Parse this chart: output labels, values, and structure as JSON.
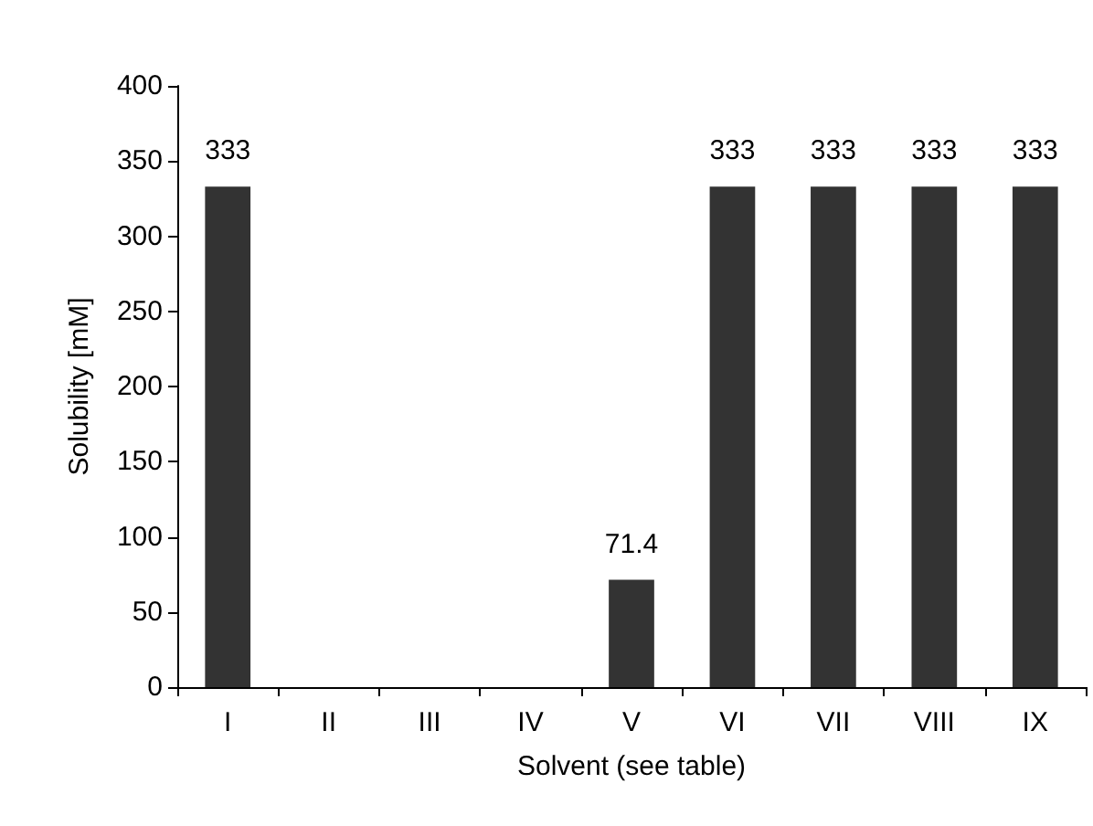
{
  "chart_data": {
    "type": "bar",
    "xlabel": "Solvent (see table)",
    "ylabel": "Solubility [mM]",
    "categories": [
      "I",
      "II",
      "III",
      "IV",
      "V",
      "VI",
      "VII",
      "VIII",
      "IX"
    ],
    "values": [
      333,
      0,
      0,
      0,
      71.4,
      333,
      333,
      333,
      333
    ],
    "value_labels": [
      "333",
      null,
      null,
      null,
      "71.4",
      "333",
      "333",
      "333",
      "333"
    ],
    "color": "#333333",
    "ylim": [
      0,
      400
    ],
    "yticks": [
      0,
      50,
      100,
      150,
      200,
      250,
      300,
      350,
      400
    ]
  }
}
